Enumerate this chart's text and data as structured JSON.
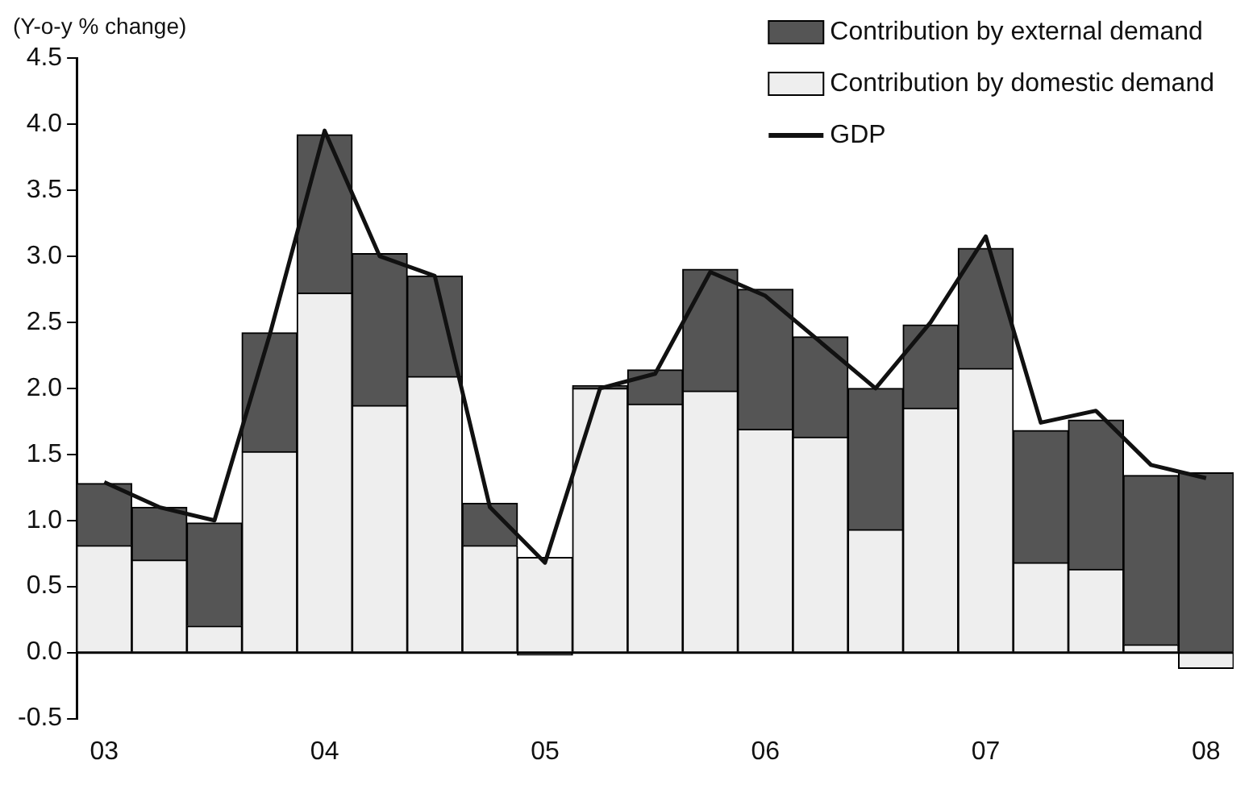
{
  "chart_data": {
    "type": "bar",
    "ylabel": "(Y-o-y % change)",
    "stacked": true,
    "categories": [
      "03",
      null,
      null,
      null,
      "04",
      null,
      null,
      null,
      "05",
      null,
      null,
      null,
      "06",
      null,
      null,
      null,
      "07",
      null,
      null,
      null,
      "08"
    ],
    "series": [
      {
        "name": "Contribution by domestic demand",
        "color": "#eeeeee",
        "values": [
          0.81,
          0.7,
          0.2,
          1.52,
          2.72,
          1.87,
          2.09,
          0.81,
          0.72,
          2.0,
          1.88,
          1.98,
          1.69,
          1.63,
          0.93,
          1.85,
          2.15,
          0.68,
          0.63,
          0.06,
          -0.12
        ]
      },
      {
        "name": "Contribution by external demand",
        "color": "#555555",
        "values": [
          0.47,
          0.4,
          0.78,
          0.9,
          1.2,
          1.15,
          0.76,
          0.32,
          -0.02,
          0.02,
          0.26,
          0.92,
          1.06,
          0.76,
          1.07,
          0.63,
          0.91,
          1.0,
          1.13,
          1.28,
          1.36
        ]
      },
      {
        "name": "GDP",
        "type": "line",
        "color": "#111111",
        "values": [
          1.29,
          1.1,
          1.0,
          2.4,
          3.95,
          3.0,
          2.85,
          1.1,
          0.68,
          2.0,
          2.11,
          2.88,
          2.7,
          2.35,
          2.0,
          2.5,
          3.15,
          1.74,
          1.83,
          1.42,
          1.32
        ]
      }
    ],
    "ylim": [
      -0.5,
      4.5
    ],
    "yticks": [
      -0.5,
      {
        "value": 0,
        "label": "0.0"
      },
      0.5,
      {
        "value": 1,
        "label": "1.0"
      },
      1.5,
      {
        "value": 2,
        "label": "2.0"
      },
      2.5,
      {
        "value": 3,
        "label": "3.0"
      },
      3.5,
      {
        "value": 4,
        "label": "4.0"
      },
      4.5
    ],
    "legend": "top right",
    "marker": "none",
    "line_style": "solid"
  }
}
